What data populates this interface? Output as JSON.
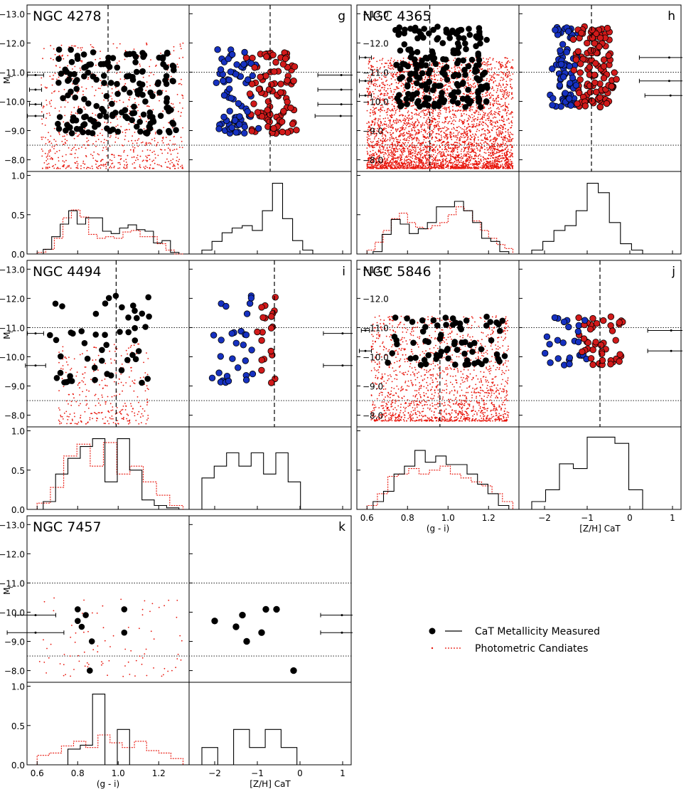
{
  "legend": {
    "measured_label": "CaT Metallicity Measured",
    "photometric_label": "Photometric Candiates",
    "measured_color": "#000000",
    "photometric_color": "#e8140a"
  },
  "colors": {
    "red_gc": "#d11a1a",
    "blue_gc": "#1631c0",
    "axis": "#000000"
  },
  "axis_labels": {
    "color": "(g - i)",
    "metallicity": "[Z/H] CaT",
    "magnitude_main": "M",
    "magnitude_sub": "I"
  },
  "chart_data": [
    {
      "galaxy": "NGC 4278",
      "panel_letter": "g",
      "color_split": 0.95,
      "metallicity_split": -0.7,
      "mag_range": [
        -7.6,
        -13.3
      ],
      "hline_mags": [
        -11.0,
        -8.5
      ],
      "n_photometric": 720,
      "phot_color_range": [
        0.62,
        1.32
      ],
      "phot_mag_range": [
        -7.7,
        -12.0
      ],
      "measured": {
        "n": 170,
        "color_range": [
          0.7,
          1.3
        ],
        "mag_range": [
          -8.9,
          -11.8
        ]
      },
      "errorbars": [
        {
          "mag": -10.9,
          "err": 0.04
        },
        {
          "mag": -10.4,
          "err": 0.03
        },
        {
          "mag": -9.9,
          "err": 0.03
        },
        {
          "mag": -9.5,
          "err": 0.04
        }
      ],
      "zh_errorbars": [
        {
          "mag": -10.9,
          "err": 0.55
        },
        {
          "mag": -10.4,
          "err": 0.55
        },
        {
          "mag": -9.9,
          "err": 0.55
        },
        {
          "mag": -9.5,
          "err": 0.6
        }
      ],
      "color_hist": {
        "measured": [
          0.06,
          0.22,
          0.38,
          0.55,
          0.38,
          0.46,
          0.46,
          0.29,
          0.26,
          0.33,
          0.37,
          0.31,
          0.29,
          0.14,
          0.17,
          0.02
        ],
        "photometric": [
          0.02,
          0.06,
          0.2,
          0.46,
          0.56,
          0.47,
          0.25,
          0.2,
          0.22,
          0.2,
          0.28,
          0.3,
          0.22,
          0.22,
          0.13,
          0.05,
          0.0
        ]
      },
      "zh_hist": [
        0.05,
        0.16,
        0.27,
        0.33,
        0.36,
        0.3,
        0.55,
        0.9,
        0.45,
        0.17,
        0.05
      ]
    },
    {
      "galaxy": "NGC 4365",
      "panel_letter": "h",
      "color_split": 0.91,
      "metallicity_split": -0.9,
      "mag_range": [
        -7.6,
        -13.3
      ],
      "hline_mags": [
        -11.0,
        -8.5
      ],
      "n_photometric": 4200,
      "phot_color_range": [
        0.6,
        1.32
      ],
      "phot_mag_range": [
        -7.7,
        -11.5
      ],
      "measured": {
        "n": 200,
        "color_range": [
          0.74,
          1.2
        ],
        "mag_range": [
          -9.8,
          -12.6
        ]
      },
      "errorbars": [
        {
          "mag": -11.5,
          "err": 0.03
        },
        {
          "mag": -10.7,
          "err": 0.03
        },
        {
          "mag": -10.2,
          "err": 0.03
        }
      ],
      "zh_errorbars": [
        {
          "mag": -11.5,
          "err": 0.7
        },
        {
          "mag": -10.7,
          "err": 0.7
        },
        {
          "mag": -10.2,
          "err": 0.6
        }
      ],
      "color_hist": {
        "measured": [
          0.03,
          0.25,
          0.44,
          0.38,
          0.26,
          0.32,
          0.4,
          0.6,
          0.6,
          0.67,
          0.55,
          0.4,
          0.2,
          0.16,
          0.03
        ],
        "photometric": [
          0.05,
          0.15,
          0.3,
          0.45,
          0.52,
          0.4,
          0.34,
          0.32,
          0.36,
          0.4,
          0.5,
          0.6,
          0.55,
          0.42,
          0.3,
          0.2,
          0.12,
          0.07
        ]
      },
      "zh_hist": [
        0.05,
        0.16,
        0.3,
        0.36,
        0.55,
        0.9,
        0.78,
        0.4,
        0.13,
        0.05
      ]
    },
    {
      "galaxy": "NGC 4494",
      "panel_letter": "i",
      "color_split": 0.99,
      "metallicity_split": -0.6,
      "mag_range": [
        -7.6,
        -13.3
      ],
      "hline_mags": [
        -11.0,
        -8.5
      ],
      "n_photometric": 300,
      "phot_color_range": [
        0.7,
        1.15
      ],
      "phot_mag_range": [
        -7.7,
        -10.5
      ],
      "measured": {
        "n": 50,
        "color_range": [
          0.66,
          1.16
        ],
        "mag_range": [
          -9.1,
          -12.1
        ]
      },
      "errorbars": [
        {
          "mag": -10.8,
          "err": 0.04
        },
        {
          "mag": -9.7,
          "err": 0.05
        }
      ],
      "zh_errorbars": [
        {
          "mag": -10.8,
          "err": 0.45
        },
        {
          "mag": -9.7,
          "err": 0.45
        }
      ],
      "color_hist": {
        "measured": [
          0.1,
          0.45,
          0.65,
          0.8,
          0.9,
          0.35,
          0.9,
          0.5,
          0.12,
          0.05,
          0.02
        ],
        "photometric": [
          0.08,
          0.28,
          0.68,
          0.83,
          0.55,
          0.85,
          0.45,
          0.55,
          0.35,
          0.18,
          0.05
        ]
      },
      "zh_hist": [
        0.4,
        0.55,
        0.72,
        0.55,
        0.72,
        0.45,
        0.72,
        0.35,
        0.0
      ]
    },
    {
      "galaxy": "NGC 5846",
      "panel_letter": "j",
      "color_split": 0.96,
      "metallicity_split": -0.7,
      "mag_range": [
        -7.6,
        -13.3
      ],
      "hline_mags": [
        -11.0,
        -8.5
      ],
      "n_photometric": 1600,
      "phot_color_range": [
        0.62,
        1.3
      ],
      "phot_mag_range": [
        -7.8,
        -11.4
      ],
      "measured": {
        "n": 70,
        "color_range": [
          0.68,
          1.28
        ],
        "mag_range": [
          -9.7,
          -11.4
        ]
      },
      "errorbars": [
        {
          "mag": -10.9,
          "err": 0.02
        },
        {
          "mag": -10.2,
          "err": 0.03
        }
      ],
      "zh_errorbars": [
        {
          "mag": -10.9,
          "err": 0.55
        },
        {
          "mag": -10.2,
          "err": 0.55
        }
      ],
      "color_hist": {
        "measured": [
          0.1,
          0.23,
          0.45,
          0.55,
          0.75,
          0.6,
          0.68,
          0.57,
          0.57,
          0.45,
          0.32,
          0.2,
          0.05
        ],
        "photometric": [
          0.05,
          0.2,
          0.42,
          0.45,
          0.52,
          0.45,
          0.5,
          0.55,
          0.45,
          0.4,
          0.35,
          0.3,
          0.2,
          0.1
        ]
      },
      "zh_hist": [
        0.1,
        0.25,
        0.58,
        0.52,
        0.92,
        0.92,
        0.84,
        0.25
      ]
    },
    {
      "galaxy": "NGC 7457",
      "panel_letter": "k",
      "color_split": null,
      "metallicity_split": null,
      "mag_range": [
        -7.6,
        -13.3
      ],
      "hline_mags": [
        -11.0,
        -8.5
      ],
      "n_photometric": 90,
      "phot_color_range": [
        0.6,
        1.32
      ],
      "phot_mag_range": [
        -7.8,
        -10.5
      ],
      "measured": {
        "points": [
          {
            "color": 0.8,
            "zh": -2.0,
            "mag": -9.7
          },
          {
            "color": 0.82,
            "zh": -1.5,
            "mag": -9.5
          },
          {
            "color": 0.84,
            "zh": -1.35,
            "mag": -9.9
          },
          {
            "color": 0.87,
            "zh": -1.25,
            "mag": -9.0
          },
          {
            "color": 0.8,
            "zh": -0.8,
            "mag": -10.1
          },
          {
            "color": 1.03,
            "zh": -0.55,
            "mag": -10.1
          },
          {
            "color": 1.03,
            "zh": -0.9,
            "mag": -9.3
          },
          {
            "color": 0.86,
            "zh": -0.15,
            "mag": -8.0
          }
        ]
      },
      "errorbars": [
        {
          "mag": -9.9,
          "err": 0.1
        },
        {
          "mag": -9.3,
          "err": 0.14
        }
      ],
      "zh_errorbars": [
        {
          "mag": -9.9,
          "err": 0.5
        },
        {
          "mag": -9.3,
          "err": 0.5
        }
      ],
      "color_hist": {
        "measured": [
          0.0,
          0.0,
          0.2,
          0.25,
          0.9,
          0.0,
          0.45,
          0.0,
          0.0,
          0.0,
          0.0
        ],
        "photometric": [
          0.12,
          0.15,
          0.24,
          0.3,
          0.22,
          0.38,
          0.28,
          0.22,
          0.3,
          0.18,
          0.15,
          0.08
        ]
      },
      "zh_hist": [
        0.22,
        0.0,
        0.45,
        0.22,
        0.45,
        0.22,
        0.0
      ]
    }
  ]
}
